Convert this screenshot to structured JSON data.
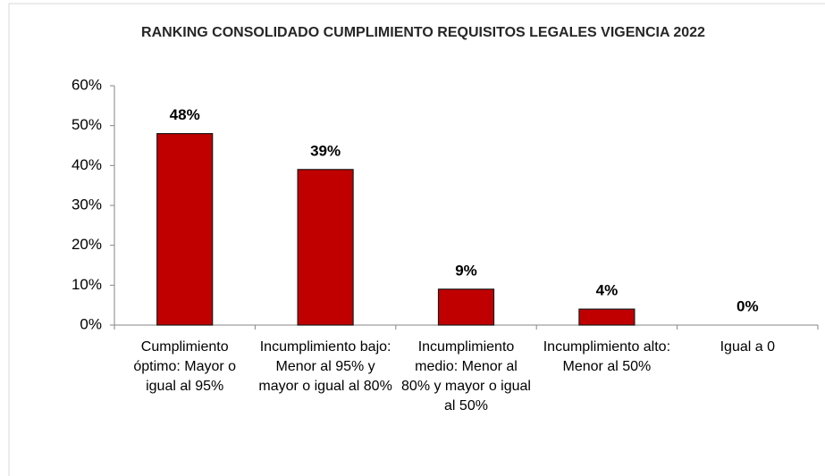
{
  "chart_data": {
    "type": "bar",
    "title": "RANKING CONSOLIDADO CUMPLIMIENTO REQUISITOS LEGALES VIGENCIA 2022",
    "categories": [
      "Cumplimiento óptimo: Mayor o igual al 95%",
      "Incumplimiento bajo: Menor al 95% y mayor o igual al 80%",
      "Incumplimiento medio: Menor al 80% y mayor o igual al 50%",
      "Incumplimiento alto: Menor al 50%",
      "Igual a 0"
    ],
    "values": [
      48,
      39,
      9,
      4,
      0
    ],
    "value_labels": [
      "48%",
      "39%",
      "9%",
      "4%",
      "0%"
    ],
    "color": "#c00000",
    "ylim": [
      0,
      60
    ],
    "yticks": [
      {
        "value": 0,
        "label": "0%"
      },
      {
        "value": 10,
        "label": "10%"
      },
      {
        "value": 20,
        "label": "20%"
      },
      {
        "value": 30,
        "label": "30%"
      },
      {
        "value": 40,
        "label": "40%"
      },
      {
        "value": 50,
        "label": "50%"
      },
      {
        "value": 60,
        "label": "60%"
      }
    ],
    "grid": false
  }
}
